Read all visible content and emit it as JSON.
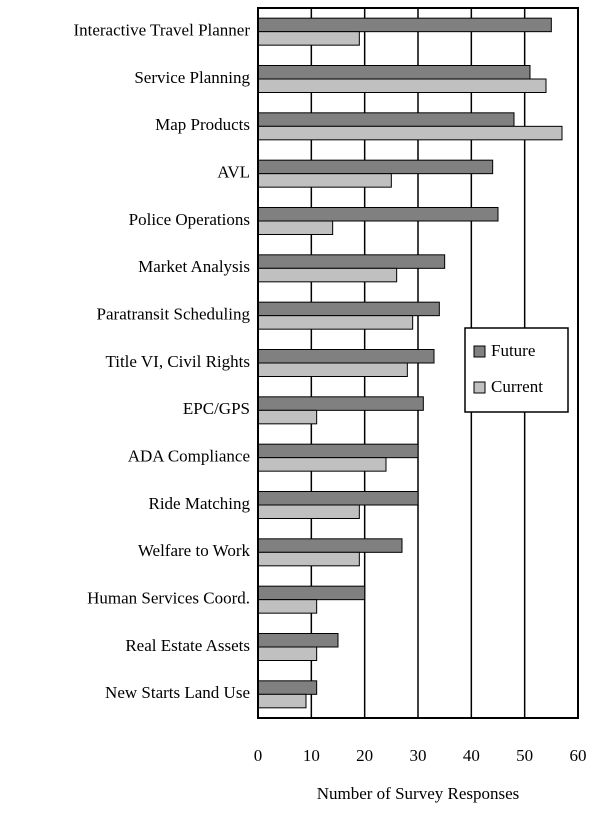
{
  "chart_data": {
    "type": "bar",
    "orientation": "horizontal",
    "xlabel": "Number of Survey Responses",
    "categories": [
      "Interactive Travel Planner",
      "Service Planning",
      "Map Products",
      "AVL",
      "Police Operations",
      "Market Analysis",
      "Paratransit Scheduling",
      "Title VI, Civil Rights",
      "EPC/GPS",
      "ADA Compliance",
      "Ride Matching",
      "Welfare to Work",
      "Human Services Coord.",
      "Real Estate Assets",
      "New Starts Land Use"
    ],
    "series": [
      {
        "name": "Future",
        "color": "#808080",
        "values": [
          55,
          51,
          48,
          44,
          45,
          35,
          34,
          33,
          31,
          30,
          30,
          27,
          20,
          15,
          11
        ]
      },
      {
        "name": "Current",
        "color": "#c0c0c0",
        "values": [
          19,
          54,
          57,
          25,
          14,
          26,
          29,
          28,
          11,
          24,
          19,
          19,
          11,
          11,
          9
        ]
      }
    ],
    "xlim": [
      0,
      60
    ],
    "xticks": [
      0,
      10,
      20,
      30,
      40,
      50,
      60
    ],
    "grid": true,
    "legend": "right"
  }
}
